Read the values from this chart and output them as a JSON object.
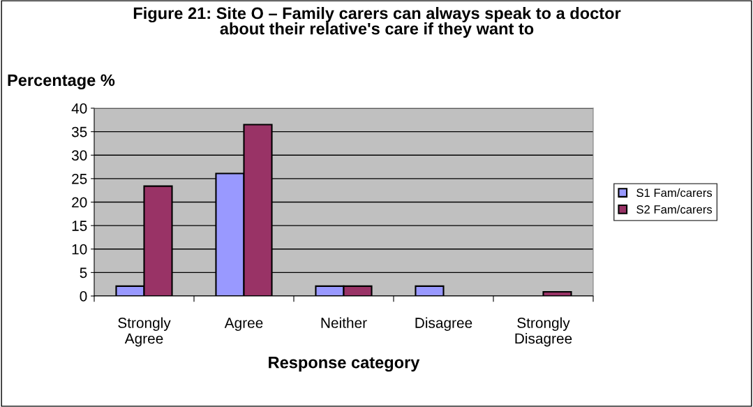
{
  "chart_data": {
    "type": "bar",
    "title": "Figure 21: Site O – Family carers can always speak to a doctor\nabout their relative's care if they want to",
    "ylabel": "Percentage %",
    "xlabel": "Response category",
    "categories": [
      "Strongly\nAgree",
      "Agree",
      "Neither",
      "Disagree",
      "Strongly\nDisagree"
    ],
    "series": [
      {
        "name": "S1 Fam/carers",
        "color": "#9999ff",
        "values": [
          2.1,
          26.1,
          2.1,
          2.1,
          null
        ]
      },
      {
        "name": "S2 Fam/carers",
        "color": "#993366",
        "values": [
          23.4,
          36.5,
          2.1,
          null,
          0.9
        ]
      }
    ],
    "ylim": [
      0,
      40
    ],
    "yticks": [
      0,
      5,
      10,
      15,
      20,
      25,
      30,
      35,
      40
    ],
    "grid": "y",
    "legend": "right"
  }
}
